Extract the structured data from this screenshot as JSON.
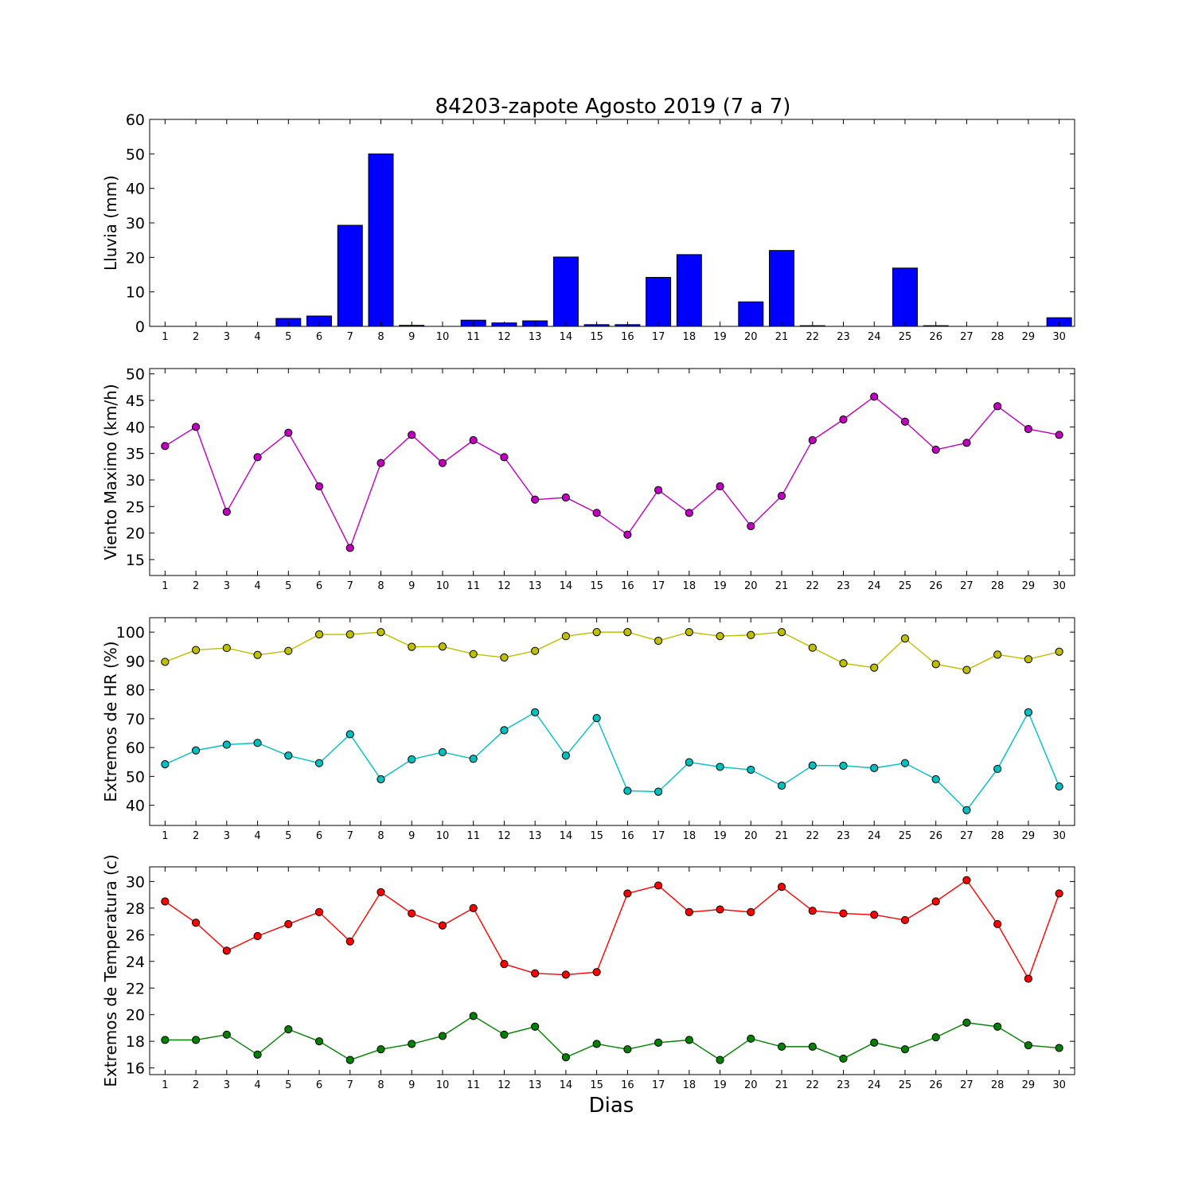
{
  "title": "84203-zapote Agosto 2019  (7 a 7)",
  "xlabel": "Dias",
  "chart_data": [
    {
      "type": "bar",
      "title": "84203-zapote Agosto 2019  (7 a 7)",
      "ylabel": "Lluvia (mm)",
      "ylim": [
        0,
        60
      ],
      "yticks": [
        0,
        10,
        20,
        30,
        40,
        50,
        60
      ],
      "categories": [
        1,
        2,
        3,
        4,
        5,
        6,
        7,
        8,
        9,
        10,
        11,
        12,
        13,
        14,
        15,
        16,
        17,
        18,
        19,
        20,
        21,
        22,
        23,
        24,
        25,
        26,
        27,
        28,
        29,
        30
      ],
      "series": [
        {
          "color": "#0000ff",
          "values": [
            0,
            0,
            0,
            0,
            2.3,
            3.0,
            29.3,
            50.0,
            0.3,
            0,
            1.8,
            1.0,
            1.6,
            20.1,
            0.5,
            0.5,
            14.2,
            20.8,
            0,
            7.1,
            22.0,
            0.2,
            0,
            0,
            16.9,
            0.2,
            0,
            0,
            0,
            2.5
          ]
        }
      ]
    },
    {
      "type": "line",
      "ylabel": "Viento Maximo (km/h)",
      "ylim": [
        12,
        51
      ],
      "yticks": [
        15,
        20,
        25,
        30,
        35,
        40,
        45,
        50
      ],
      "x": [
        1,
        2,
        3,
        4,
        5,
        6,
        7,
        8,
        9,
        10,
        11,
        12,
        13,
        14,
        15,
        16,
        17,
        18,
        19,
        20,
        21,
        22,
        23,
        24,
        25,
        26,
        27,
        28,
        29,
        30
      ],
      "series": [
        {
          "color": "#bf00bf",
          "values": [
            36.4,
            40.0,
            24.0,
            34.3,
            38.9,
            28.8,
            17.2,
            33.2,
            38.5,
            33.2,
            37.5,
            34.3,
            26.3,
            26.7,
            23.8,
            19.7,
            28.1,
            23.8,
            28.8,
            21.3,
            27.0,
            37.5,
            41.4,
            45.7,
            41.0,
            35.7,
            37.0,
            43.9,
            39.6,
            38.5
          ]
        }
      ]
    },
    {
      "type": "line",
      "ylabel": "Extremos de HR (%)",
      "ylim": [
        33,
        105
      ],
      "yticks": [
        40,
        50,
        60,
        70,
        80,
        90,
        100
      ],
      "x": [
        1,
        2,
        3,
        4,
        5,
        6,
        7,
        8,
        9,
        10,
        11,
        12,
        13,
        14,
        15,
        16,
        17,
        18,
        19,
        20,
        21,
        22,
        23,
        24,
        25,
        26,
        27,
        28,
        29,
        30
      ],
      "series": [
        {
          "color": "#bfbf00",
          "values": [
            89.7,
            93.8,
            94.5,
            92.1,
            93.5,
            99.2,
            99.2,
            100.0,
            94.9,
            95.0,
            92.4,
            91.2,
            93.5,
            98.6,
            100.0,
            100.0,
            97.0,
            100.0,
            98.6,
            99.0,
            100.0,
            94.6,
            89.2,
            87.7,
            97.8,
            88.9,
            86.9,
            92.2,
            90.6,
            93.2
          ]
        },
        {
          "color": "#00bfbf",
          "values": [
            54.2,
            59.0,
            61.0,
            61.6,
            57.2,
            54.6,
            64.6,
            49.0,
            55.9,
            58.4,
            56.1,
            66.0,
            72.2,
            57.2,
            70.2,
            45.0,
            44.7,
            54.9,
            53.3,
            52.3,
            46.8,
            53.8,
            53.7,
            52.9,
            54.6,
            49.0,
            38.3,
            52.6,
            72.2,
            46.5
          ]
        }
      ]
    },
    {
      "type": "line",
      "ylabel": "Extremos de Temperatura (c)",
      "ylim": [
        15.5,
        31.1
      ],
      "yticks": [
        16,
        18,
        20,
        22,
        24,
        26,
        28,
        30
      ],
      "x": [
        1,
        2,
        3,
        4,
        5,
        6,
        7,
        8,
        9,
        10,
        11,
        12,
        13,
        14,
        15,
        16,
        17,
        18,
        19,
        20,
        21,
        22,
        23,
        24,
        25,
        26,
        27,
        28,
        29,
        30
      ],
      "series": [
        {
          "color": "#ff0000",
          "values": [
            28.5,
            26.9,
            24.8,
            25.9,
            26.8,
            27.7,
            25.5,
            29.2,
            27.6,
            26.7,
            28.0,
            23.8,
            23.1,
            23.0,
            23.2,
            29.1,
            29.7,
            27.7,
            27.9,
            27.7,
            29.6,
            27.8,
            27.6,
            27.5,
            27.1,
            28.5,
            30.1,
            26.8,
            22.7,
            29.1
          ]
        },
        {
          "color": "#008000",
          "values": [
            18.1,
            18.1,
            18.5,
            17.0,
            18.9,
            18.0,
            16.6,
            17.4,
            17.8,
            18.4,
            19.9,
            18.5,
            19.1,
            16.8,
            17.8,
            17.4,
            17.9,
            18.1,
            16.6,
            18.2,
            17.6,
            17.6,
            16.7,
            17.9,
            17.4,
            18.3,
            19.4,
            19.1,
            17.7,
            17.5
          ]
        }
      ]
    }
  ]
}
